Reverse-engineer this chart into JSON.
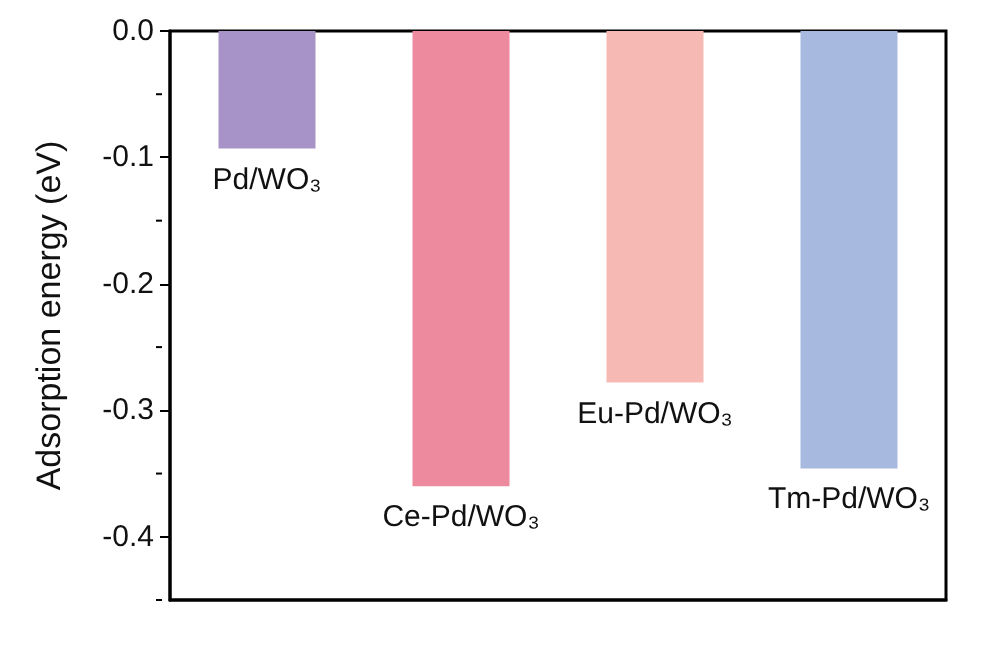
{
  "chart_data": {
    "type": "bar",
    "ylabel": "Adsorption energy (eV)",
    "categories": [
      "Pd/WO₃",
      "Ce-Pd/WO₃",
      "Eu-Pd/WO₃",
      "Tm-Pd/WO₃"
    ],
    "values": [
      -0.093,
      -0.36,
      -0.278,
      -0.346
    ],
    "colors": [
      "#a893c8",
      "#ee8a9e",
      "#f7b9b3",
      "#a7b9df"
    ],
    "ylim": [
      -0.45,
      0
    ],
    "yticks": [
      {
        "value": -0.4,
        "label": "-0.4"
      },
      {
        "value": -0.3,
        "label": "-0.3"
      },
      {
        "value": -0.2,
        "label": "-0.2"
      },
      {
        "value": -0.1,
        "label": "-0.1"
      },
      {
        "value": 0,
        "label": "0.0"
      }
    ],
    "grid": false
  }
}
